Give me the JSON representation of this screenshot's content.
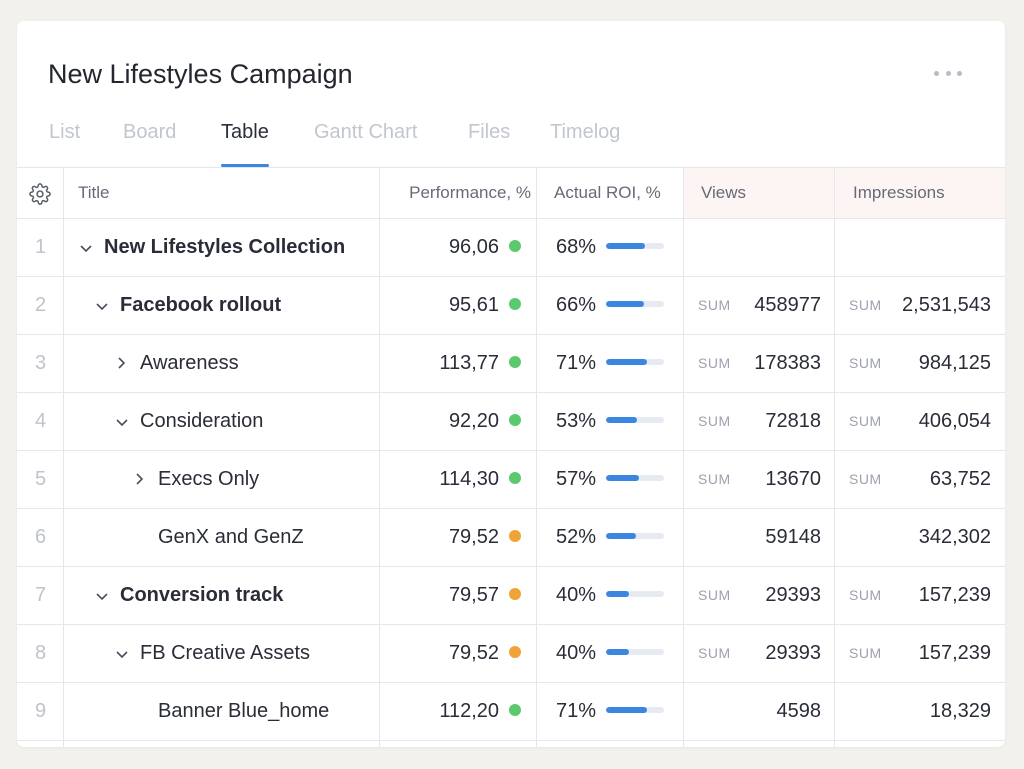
{
  "project": {
    "title": "New Lifestyles Campaign",
    "more_icon": "more-horizontal-icon"
  },
  "tabs": [
    {
      "label": "List",
      "active": false
    },
    {
      "label": "Board",
      "active": false
    },
    {
      "label": "Table",
      "active": true
    },
    {
      "label": "Gantt Chart",
      "active": false
    },
    {
      "label": "Files",
      "active": false
    },
    {
      "label": "Timelog",
      "active": false
    }
  ],
  "table": {
    "columns": {
      "settings_icon": "gear-icon",
      "title": "Title",
      "performance": "Performance, %",
      "roi": "Actual ROI, %",
      "views": "Views",
      "impressions": "Impressions"
    },
    "sum_label": "SUM",
    "colors": {
      "green": "#5cc96e",
      "orange": "#f0a336",
      "accent": "#3b86e0",
      "pink_header": "#fdf4f4"
    },
    "rows": [
      {
        "num": "1",
        "title": "New Lifestyles Collection",
        "bold": true,
        "depth": 0,
        "toggle": "expanded",
        "performance": "96,06",
        "status": "green",
        "roi": "68%",
        "roi_value": 68,
        "views": "",
        "views_sum": false,
        "impressions": "",
        "impressions_sum": false
      },
      {
        "num": "2",
        "title": "Facebook rollout",
        "bold": true,
        "depth": 1,
        "toggle": "expanded",
        "performance": "95,61",
        "status": "green",
        "roi": "66%",
        "roi_value": 66,
        "views": "458977",
        "views_sum": true,
        "impressions": "2,531,543",
        "impressions_sum": true
      },
      {
        "num": "3",
        "title": "Awareness",
        "bold": false,
        "depth": 2,
        "toggle": "collapsed",
        "performance": "113,77",
        "status": "green",
        "roi": "71%",
        "roi_value": 71,
        "views": "178383",
        "views_sum": true,
        "impressions": "984,125",
        "impressions_sum": true
      },
      {
        "num": "4",
        "title": "Consideration",
        "bold": false,
        "depth": 2,
        "toggle": "expanded",
        "performance": "92,20",
        "status": "green",
        "roi": "53%",
        "roi_value": 53,
        "views": "72818",
        "views_sum": true,
        "impressions": "406,054",
        "impressions_sum": true
      },
      {
        "num": "5",
        "title": "Execs Only",
        "bold": false,
        "depth": 3,
        "toggle": "collapsed",
        "performance": "114,30",
        "status": "green",
        "roi": "57%",
        "roi_value": 57,
        "views": "13670",
        "views_sum": true,
        "impressions": "63,752",
        "impressions_sum": true
      },
      {
        "num": "6",
        "title": "GenX and GenZ",
        "bold": false,
        "depth": 3,
        "toggle": "none",
        "performance": "79,52",
        "status": "orange",
        "roi": "52%",
        "roi_value": 52,
        "views": "59148",
        "views_sum": false,
        "impressions": "342,302",
        "impressions_sum": false
      },
      {
        "num": "7",
        "title": "Conversion track",
        "bold": true,
        "depth": 1,
        "toggle": "expanded",
        "performance": "79,57",
        "status": "orange",
        "roi": "40%",
        "roi_value": 40,
        "views": "29393",
        "views_sum": true,
        "impressions": "157,239",
        "impressions_sum": true
      },
      {
        "num": "8",
        "title": "FB Creative Assets",
        "bold": false,
        "depth": 2,
        "toggle": "expanded",
        "performance": "79,52",
        "status": "orange",
        "roi": "40%",
        "roi_value": 40,
        "views": "29393",
        "views_sum": true,
        "impressions": "157,239",
        "impressions_sum": true
      },
      {
        "num": "9",
        "title": "Banner Blue_home",
        "bold": false,
        "depth": 3,
        "toggle": "none",
        "performance": "112,20",
        "status": "green",
        "roi": "71%",
        "roi_value": 71,
        "views": "4598",
        "views_sum": false,
        "impressions": "18,329",
        "impressions_sum": false
      }
    ]
  }
}
